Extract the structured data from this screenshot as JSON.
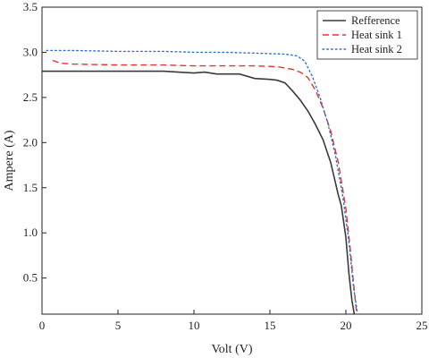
{
  "chart_data": {
    "type": "line",
    "title": "",
    "xlabel": "Volt (V)",
    "ylabel": "Ampere (A)",
    "xlim": [
      0,
      25
    ],
    "ylim": [
      0.1,
      3.5
    ],
    "xticks": [
      0,
      5,
      10,
      15,
      20,
      25
    ],
    "yticks": [
      0.5,
      1.0,
      1.5,
      2.0,
      2.5,
      3.0,
      3.5
    ],
    "xtick_labels": [
      "0",
      "5",
      "10",
      "15",
      "20",
      "25"
    ],
    "ytick_labels": [
      "0.5",
      "1.0",
      "1.5",
      "2.0",
      "2.5",
      "3.0",
      "3.5"
    ],
    "grid": false,
    "legend_position": "top-right",
    "series": [
      {
        "name": "Refference",
        "color": "#3a3a3a",
        "dash": "solid",
        "points": [
          [
            0,
            2.79
          ],
          [
            2,
            2.79
          ],
          [
            4,
            2.79
          ],
          [
            6,
            2.79
          ],
          [
            8,
            2.79
          ],
          [
            10,
            2.77
          ],
          [
            10.7,
            2.78
          ],
          [
            11.5,
            2.76
          ],
          [
            13,
            2.76
          ],
          [
            14,
            2.71
          ],
          [
            15,
            2.7
          ],
          [
            15.5,
            2.69
          ],
          [
            16,
            2.66
          ],
          [
            16.5,
            2.57
          ],
          [
            17,
            2.47
          ],
          [
            17.5,
            2.35
          ],
          [
            18,
            2.2
          ],
          [
            18.5,
            2.03
          ],
          [
            19,
            1.78
          ],
          [
            19.5,
            1.42
          ],
          [
            19.7,
            1.3
          ],
          [
            20,
            0.95
          ],
          [
            20.2,
            0.55
          ],
          [
            20.4,
            0.25
          ],
          [
            20.55,
            0.1
          ]
        ]
      },
      {
        "name": "Heat sink 1",
        "color": "#e8332c",
        "dash": "dashed",
        "points": [
          [
            0.7,
            2.91
          ],
          [
            1.2,
            2.88
          ],
          [
            2,
            2.87
          ],
          [
            5,
            2.86
          ],
          [
            8,
            2.86
          ],
          [
            10,
            2.85
          ],
          [
            12,
            2.85
          ],
          [
            14,
            2.85
          ],
          [
            15.5,
            2.84
          ],
          [
            16.5,
            2.81
          ],
          [
            17,
            2.78
          ],
          [
            17.5,
            2.72
          ],
          [
            18,
            2.58
          ],
          [
            18.5,
            2.38
          ],
          [
            19,
            2.13
          ],
          [
            19.5,
            1.78
          ],
          [
            20,
            1.27
          ],
          [
            20.3,
            0.8
          ],
          [
            20.5,
            0.45
          ],
          [
            20.7,
            0.12
          ]
        ]
      },
      {
        "name": "Heat sink 2",
        "color": "#2b6fd6",
        "dash": "dotted",
        "points": [
          [
            0.3,
            3.02
          ],
          [
            2,
            3.02
          ],
          [
            5,
            3.01
          ],
          [
            8,
            3.01
          ],
          [
            10,
            3.0
          ],
          [
            12,
            3.0
          ],
          [
            14,
            2.99
          ],
          [
            16,
            2.98
          ],
          [
            16.8,
            2.96
          ],
          [
            17.3,
            2.9
          ],
          [
            17.8,
            2.73
          ],
          [
            18.3,
            2.5
          ],
          [
            18.8,
            2.22
          ],
          [
            19.3,
            1.87
          ],
          [
            19.8,
            1.4
          ],
          [
            20.2,
            0.9
          ],
          [
            20.5,
            0.4
          ],
          [
            20.75,
            0.12
          ]
        ]
      }
    ]
  }
}
